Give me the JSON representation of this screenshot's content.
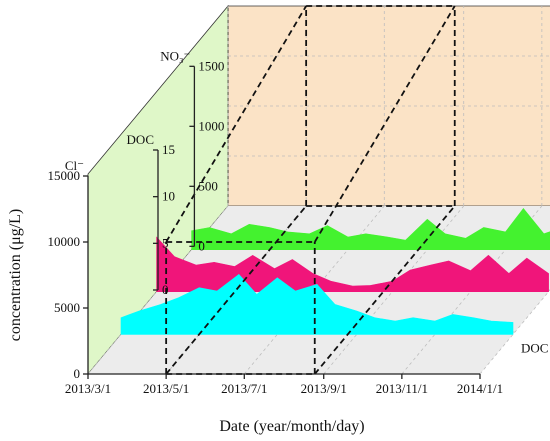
{
  "chart_data": {
    "type": "area",
    "view": "3d-ribbon",
    "xlabel": "Date (year/month/day)",
    "ylabel": "concentration (μg/L)",
    "x_ticks": [
      "2013/3/1",
      "2013/5/1",
      "2013/7/1",
      "2013/9/1",
      "2013/11/1",
      "2014/1/1"
    ],
    "x_range": [
      "2013/3/1",
      "2014/1/1"
    ],
    "axes": [
      {
        "label": "Cl⁻",
        "ticks": [
          "0",
          "5000",
          "10000",
          "15000"
        ],
        "range": [
          0,
          15000
        ]
      },
      {
        "label": "DOC",
        "ticks": [
          "0",
          "5",
          "10",
          "15"
        ],
        "range": [
          0,
          15
        ]
      },
      {
        "label": "NO₃⁻",
        "ticks": [
          "0",
          "500",
          "1000",
          "1500"
        ],
        "range": [
          0,
          1500
        ]
      }
    ],
    "grid": true,
    "walls": {
      "back": "#fbe3c6",
      "side": "#dff7c8",
      "floor": "#ececec"
    },
    "highlight_box": {
      "from": "2013/5/1",
      "to": "2013/8/25"
    },
    "series": [
      {
        "name": "DOC",
        "color": "#00ffff",
        "axis": 1,
        "x": [
          "2013/3/1",
          "2013/3/15",
          "2013/4/1",
          "2013/4/15",
          "2013/5/1",
          "2013/5/15",
          "2013/6/1",
          "2013/6/15",
          "2013/7/1",
          "2013/7/15",
          "2013/8/1",
          "2013/8/15",
          "2013/9/1",
          "2013/9/15",
          "2013/10/1",
          "2013/10/15",
          "2013/11/1",
          "2013/11/15",
          "2013/12/1",
          "2013/12/15",
          "2014/1/1"
        ],
        "values": [
          2.5,
          3.5,
          4.5,
          5.5,
          7,
          6.5,
          9,
          6,
          8.5,
          6.5,
          7.5,
          4.5,
          3.5,
          2.5,
          2.0,
          2.5,
          2.0,
          3.0,
          2.5,
          2.0,
          1.8
        ]
      },
      {
        "name": "NO₃⁻",
        "color": "#f0157a",
        "axis": 2,
        "x": [
          "2013/3/1",
          "2013/3/15",
          "2013/4/1",
          "2013/4/15",
          "2013/5/1",
          "2013/5/15",
          "2013/6/1",
          "2013/6/15",
          "2013/7/1",
          "2013/7/15",
          "2013/8/1",
          "2013/8/15",
          "2013/9/1",
          "2013/9/15",
          "2013/10/1",
          "2013/10/15",
          "2013/11/1",
          "2013/11/15",
          "2013/12/1",
          "2013/12/15",
          "2014/1/1"
        ],
        "values": [
          780,
          500,
          380,
          420,
          360,
          520,
          330,
          460,
          260,
          150,
          80,
          90,
          150,
          310,
          380,
          440,
          300,
          520,
          260,
          480,
          260
        ]
      },
      {
        "name": "Cl⁻",
        "color": "#44f22f",
        "axis": 0,
        "x": [
          "2013/3/1",
          "2013/3/15",
          "2013/4/1",
          "2013/4/15",
          "2013/5/1",
          "2013/5/15",
          "2013/6/1",
          "2013/6/15",
          "2013/7/1",
          "2013/7/15",
          "2013/8/1",
          "2013/8/15",
          "2013/9/1",
          "2013/9/15",
          "2013/10/1",
          "2013/10/15",
          "2013/11/1",
          "2013/11/15",
          "2013/12/1",
          "2013/12/15",
          "2014/1/1"
        ],
        "values": [
          3000,
          3500,
          2500,
          4000,
          3500,
          2800,
          2500,
          3800,
          2000,
          2500,
          2000,
          1500,
          4800,
          2500,
          1800,
          3500,
          2800,
          6500,
          2500,
          3500,
          3000
        ]
      }
    ]
  }
}
